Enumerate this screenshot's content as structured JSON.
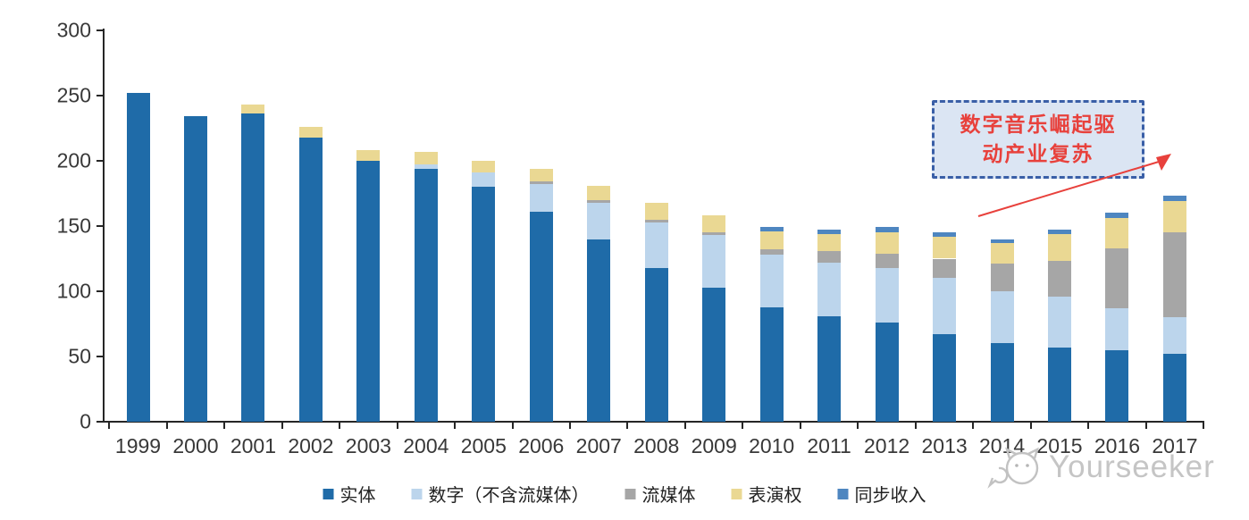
{
  "chart_data": {
    "type": "bar",
    "stacked": true,
    "title": "",
    "xlabel": "",
    "ylabel": "",
    "ylim": [
      0,
      300
    ],
    "yticks": [
      0,
      50,
      100,
      150,
      200,
      250,
      300
    ],
    "grid": false,
    "legend_position": "bottom",
    "categories": [
      "1999",
      "2000",
      "2001",
      "2002",
      "2003",
      "2004",
      "2005",
      "2006",
      "2007",
      "2008",
      "2009",
      "2010",
      "2011",
      "2012",
      "2013",
      "2014",
      "2015",
      "2016",
      "2017"
    ],
    "series": [
      {
        "name": "实体",
        "color": "#1f6ba8",
        "values": [
          252,
          234,
          236,
          218,
          200,
          194,
          180,
          161,
          140,
          118,
          103,
          88,
          81,
          76,
          67,
          60,
          57,
          55,
          52
        ]
      },
      {
        "name": "数字（不含流媒体）",
        "color": "#bcd5ec",
        "values": [
          0,
          0,
          0,
          0,
          0,
          3,
          11,
          21,
          28,
          35,
          40,
          40,
          41,
          42,
          43,
          40,
          39,
          32,
          28
        ]
      },
      {
        "name": "流媒体",
        "color": "#a6a6a6",
        "values": [
          0,
          0,
          0,
          0,
          0,
          0,
          0,
          2,
          2,
          2,
          2,
          4,
          9,
          11,
          15,
          21,
          27,
          46,
          65
        ]
      },
      {
        "name": "表演权",
        "color": "#ead893",
        "values": [
          0,
          0,
          7,
          8,
          8,
          10,
          9,
          10,
          11,
          13,
          13,
          14,
          13,
          16,
          17,
          16,
          21,
          23,
          24
        ]
      },
      {
        "name": "同步收入",
        "color": "#4e86c0",
        "values": [
          0,
          0,
          0,
          0,
          0,
          0,
          0,
          0,
          0,
          0,
          0,
          3,
          3,
          4,
          3,
          3,
          3,
          4,
          4
        ]
      }
    ]
  },
  "annotation": {
    "line1": "数字音乐崛起驱",
    "line2": "动产业复苏",
    "box_fill": "#dbe5f3",
    "border_color": "#3a5fa7",
    "text_color": "#e8413c",
    "arrow_color": "#e8413c"
  },
  "watermark": {
    "text": "Yourseeker",
    "logo": "cat-logo-icon",
    "color": "#c5c5c5"
  },
  "colors": {
    "axis": "#262626",
    "tick_label": "#383838",
    "background": "#ffffff"
  }
}
